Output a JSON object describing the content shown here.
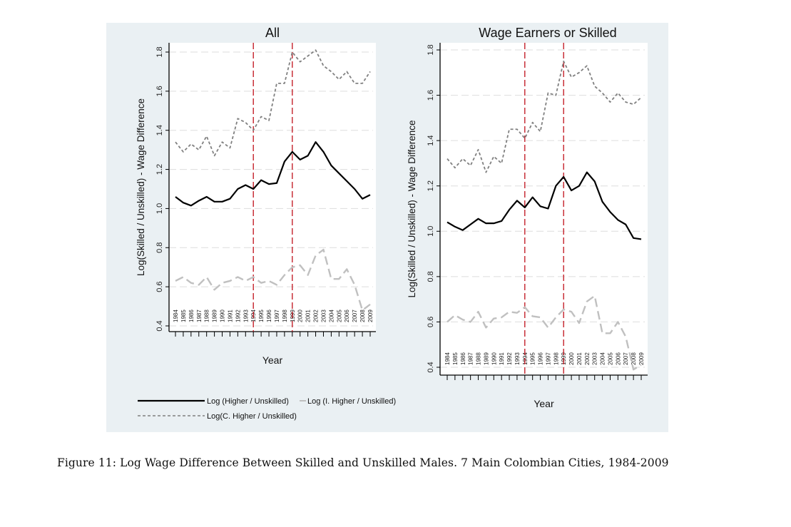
{
  "caption": "Figure 11: Log Wage Difference Between Skilled and Unskilled Males. 7 Main Colombian Cities, 1984-2009",
  "colors": {
    "background": "#eaf0f3",
    "plot": "#ffffff",
    "higher": "#000000",
    "i_higher": "#c0c0c0",
    "c_higher": "#808080",
    "vline": "#c0101a",
    "grid": "#dddddd"
  },
  "legend": {
    "position": "bottom-left",
    "items": [
      "Log (Higher / Unskilled)",
      "Log (I. Higher / Unskilled)",
      "Log(C. Higher / Unskilled)"
    ]
  },
  "chart_data": [
    {
      "type": "line",
      "title": "All",
      "xlabel": "Year",
      "ylabel": "Log(Skilled / Unskilled) - Wage Difference",
      "ylim": [
        0.4,
        1.8
      ],
      "yticks": [
        "0.4",
        "0.6",
        "0.8",
        "1.0",
        "1.2",
        "1.4",
        "1.6",
        "1.8"
      ],
      "x": [
        1984,
        1985,
        1986,
        1987,
        1988,
        1989,
        1990,
        1991,
        1992,
        1993,
        1994,
        1995,
        1996,
        1997,
        1998,
        1999,
        2000,
        2001,
        2002,
        2003,
        2004,
        2005,
        2006,
        2007,
        2008,
        2009
      ],
      "vlines": [
        1994,
        1999
      ],
      "grid": true,
      "series": [
        {
          "name": "Log (Higher / Unskilled)",
          "values": [
            1.06,
            1.03,
            1.015,
            1.04,
            1.06,
            1.035,
            1.035,
            1.05,
            1.1,
            1.12,
            1.1,
            1.145,
            1.125,
            1.13,
            1.24,
            1.29,
            1.25,
            1.27,
            1.34,
            1.29,
            1.22,
            1.18,
            1.14,
            1.1,
            1.05,
            1.07
          ]
        },
        {
          "name": "Log (I. Higher / Unskilled)",
          "values": [
            0.63,
            0.65,
            0.62,
            0.61,
            0.65,
            0.585,
            0.62,
            0.63,
            0.65,
            0.63,
            0.65,
            0.62,
            0.63,
            0.61,
            0.66,
            0.7,
            0.71,
            0.66,
            0.76,
            0.79,
            0.64,
            0.64,
            0.69,
            0.61,
            0.48,
            0.51
          ]
        },
        {
          "name": "Log(C. Higher / Unskilled)",
          "values": [
            1.34,
            1.29,
            1.33,
            1.3,
            1.37,
            1.27,
            1.34,
            1.31,
            1.46,
            1.44,
            1.4,
            1.47,
            1.45,
            1.64,
            1.64,
            1.8,
            1.75,
            1.78,
            1.81,
            1.73,
            1.7,
            1.66,
            1.7,
            1.64,
            1.64,
            1.7
          ]
        }
      ]
    },
    {
      "type": "line",
      "title": "Wage Earners or Skilled",
      "xlabel": "Year",
      "ylabel": "Log(Skilled / Unskilled) - Wage Difference",
      "ylim": [
        0.4,
        1.8
      ],
      "yticks": [
        "0.4",
        "0.6",
        "0.8",
        "1.0",
        "1.2",
        "1.4",
        "1.6",
        "1.8"
      ],
      "x": [
        1984,
        1985,
        1986,
        1987,
        1988,
        1989,
        1990,
        1991,
        1992,
        1993,
        1994,
        1995,
        1996,
        1997,
        1998,
        1999,
        2000,
        2001,
        2002,
        2003,
        2004,
        2005,
        2006,
        2007,
        2008,
        2009
      ],
      "vlines": [
        1994,
        1999
      ],
      "grid": true,
      "series": [
        {
          "name": "Log (Higher / Unskilled)",
          "values": [
            1.04,
            1.02,
            1.005,
            1.03,
            1.055,
            1.035,
            1.035,
            1.045,
            1.095,
            1.135,
            1.105,
            1.15,
            1.11,
            1.1,
            1.2,
            1.24,
            1.18,
            1.2,
            1.26,
            1.22,
            1.13,
            1.085,
            1.05,
            1.03,
            0.97,
            0.965
          ]
        },
        {
          "name": "Log (I. Higher / Unskilled)",
          "values": [
            0.6,
            0.63,
            0.61,
            0.6,
            0.645,
            0.575,
            0.615,
            0.62,
            0.645,
            0.64,
            0.665,
            0.625,
            0.62,
            0.575,
            0.62,
            0.655,
            0.645,
            0.595,
            0.69,
            0.715,
            0.55,
            0.55,
            0.6,
            0.535,
            0.39,
            0.41
          ]
        },
        {
          "name": "Log(C. Higher / Unskilled)",
          "values": [
            1.32,
            1.28,
            1.32,
            1.29,
            1.36,
            1.26,
            1.33,
            1.3,
            1.45,
            1.45,
            1.41,
            1.48,
            1.44,
            1.61,
            1.6,
            1.75,
            1.68,
            1.7,
            1.73,
            1.64,
            1.61,
            1.57,
            1.61,
            1.57,
            1.56,
            1.59
          ]
        }
      ]
    }
  ]
}
